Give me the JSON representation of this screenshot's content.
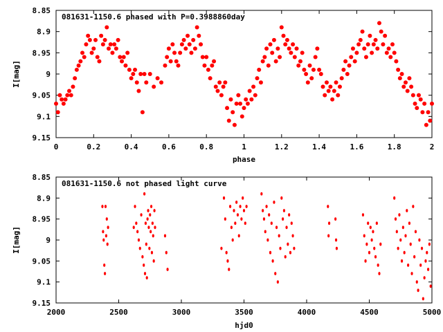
{
  "chart_data": [
    {
      "type": "scatter",
      "title": "081631-1150.6 phased with P=0.3988860day",
      "xlabel": "phase",
      "ylabel": "I[mag]",
      "xlim": [
        0,
        2
      ],
      "ylim": [
        8.85,
        9.15
      ],
      "y_inverted": true,
      "grid": false,
      "marker_color": "#ff0000",
      "marker": "filled-circle",
      "x_ticks": [
        "0",
        "0.2",
        "0.4",
        "0.6",
        "0.8",
        "1",
        "1.2",
        "1.4",
        "1.6",
        "1.8",
        "2"
      ],
      "y_ticks": [
        "8.85",
        "8.9",
        "8.95",
        "9",
        "9.05",
        "9.1",
        "9.15"
      ],
      "x_tick_values": [
        0,
        0.2,
        0.4,
        0.6,
        0.8,
        1,
        1.2,
        1.4,
        1.6,
        1.8,
        2
      ],
      "y_tick_values": [
        8.85,
        8.9,
        8.95,
        9,
        9.05,
        9.1,
        9.15
      ],
      "points": [
        [
          0.0,
          9.07
        ],
        [
          0.01,
          9.09
        ],
        [
          0.02,
          9.05
        ],
        [
          0.03,
          9.06
        ],
        [
          0.04,
          9.07
        ],
        [
          0.05,
          9.06
        ],
        [
          0.06,
          9.05
        ],
        [
          0.07,
          9.04
        ],
        [
          0.08,
          9.05
        ],
        [
          0.09,
          9.03
        ],
        [
          0.1,
          9.01
        ],
        [
          0.11,
          8.99
        ],
        [
          0.12,
          8.98
        ],
        [
          0.13,
          8.97
        ],
        [
          0.14,
          8.95
        ],
        [
          0.15,
          8.96
        ],
        [
          0.16,
          8.93
        ],
        [
          0.17,
          8.91
        ],
        [
          0.18,
          8.92
        ],
        [
          0.19,
          8.95
        ],
        [
          0.2,
          8.94
        ],
        [
          0.21,
          8.92
        ],
        [
          0.22,
          8.96
        ],
        [
          0.23,
          8.97
        ],
        [
          0.24,
          8.91
        ],
        [
          0.25,
          8.93
        ],
        [
          0.26,
          8.92
        ],
        [
          0.27,
          8.89
        ],
        [
          0.28,
          8.94
        ],
        [
          0.29,
          8.93
        ],
        [
          0.3,
          8.95
        ],
        [
          0.31,
          8.93
        ],
        [
          0.32,
          8.94
        ],
        [
          0.33,
          8.92
        ],
        [
          0.34,
          8.96
        ],
        [
          0.35,
          8.97
        ],
        [
          0.36,
          8.96
        ],
        [
          0.37,
          8.98
        ],
        [
          0.38,
          8.95
        ],
        [
          0.39,
          8.99
        ],
        [
          0.4,
          9.01
        ],
        [
          0.41,
          9.0
        ],
        [
          0.42,
          8.99
        ],
        [
          0.43,
          9.02
        ],
        [
          0.44,
          9.04
        ],
        [
          0.45,
          9.0
        ],
        [
          0.46,
          9.09
        ],
        [
          0.47,
          9.0
        ],
        [
          0.48,
          9.02
        ],
        [
          0.5,
          9.0
        ],
        [
          0.52,
          9.03
        ],
        [
          0.54,
          9.01
        ],
        [
          0.56,
          9.02
        ],
        [
          0.58,
          8.98
        ],
        [
          0.59,
          8.96
        ],
        [
          0.6,
          8.94
        ],
        [
          0.61,
          8.97
        ],
        [
          0.62,
          8.93
        ],
        [
          0.63,
          8.95
        ],
        [
          0.64,
          8.97
        ],
        [
          0.65,
          8.98
        ],
        [
          0.66,
          8.95
        ],
        [
          0.67,
          8.93
        ],
        [
          0.68,
          8.92
        ],
        [
          0.69,
          8.94
        ],
        [
          0.7,
          8.91
        ],
        [
          0.71,
          8.93
        ],
        [
          0.72,
          8.95
        ],
        [
          0.73,
          8.92
        ],
        [
          0.74,
          8.94
        ],
        [
          0.75,
          8.89
        ],
        [
          0.76,
          8.91
        ],
        [
          0.77,
          8.93
        ],
        [
          0.78,
          8.96
        ],
        [
          0.79,
          8.98
        ],
        [
          0.8,
          8.96
        ],
        [
          0.81,
          8.99
        ],
        [
          0.82,
          9.01
        ],
        [
          0.83,
          8.98
        ],
        [
          0.84,
          8.97
        ],
        [
          0.85,
          9.03
        ],
        [
          0.86,
          9.04
        ],
        [
          0.87,
          9.02
        ],
        [
          0.88,
          9.05
        ],
        [
          0.89,
          9.03
        ],
        [
          0.9,
          9.02
        ],
        [
          0.91,
          9.08
        ],
        [
          0.92,
          9.11
        ],
        [
          0.93,
          9.06
        ],
        [
          0.94,
          9.09
        ],
        [
          0.95,
          9.12
        ],
        [
          0.96,
          9.07
        ],
        [
          0.97,
          9.05
        ],
        [
          0.98,
          9.07
        ],
        [
          0.99,
          9.1
        ],
        [
          1.0,
          9.08
        ],
        [
          1.01,
          9.06
        ],
        [
          1.02,
          9.07
        ],
        [
          1.03,
          9.04
        ],
        [
          1.04,
          9.06
        ],
        [
          1.05,
          9.03
        ],
        [
          1.06,
          9.05
        ],
        [
          1.07,
          9.01
        ],
        [
          1.08,
          8.99
        ],
        [
          1.09,
          9.02
        ],
        [
          1.1,
          8.97
        ],
        [
          1.11,
          8.96
        ],
        [
          1.12,
          8.94
        ],
        [
          1.13,
          8.98
        ],
        [
          1.14,
          8.93
        ],
        [
          1.15,
          8.95
        ],
        [
          1.16,
          8.92
        ],
        [
          1.17,
          8.97
        ],
        [
          1.18,
          8.94
        ],
        [
          1.19,
          8.96
        ],
        [
          1.2,
          8.89
        ],
        [
          1.21,
          8.91
        ],
        [
          1.22,
          8.93
        ],
        [
          1.23,
          8.92
        ],
        [
          1.24,
          8.94
        ],
        [
          1.25,
          8.95
        ],
        [
          1.26,
          8.93
        ],
        [
          1.27,
          8.96
        ],
        [
          1.28,
          8.94
        ],
        [
          1.29,
          8.98
        ],
        [
          1.3,
          8.97
        ],
        [
          1.31,
          8.95
        ],
        [
          1.32,
          8.99
        ],
        [
          1.33,
          9.0
        ],
        [
          1.34,
          9.02
        ],
        [
          1.35,
          8.98
        ],
        [
          1.36,
          9.01
        ],
        [
          1.37,
          8.99
        ],
        [
          1.38,
          8.96
        ],
        [
          1.39,
          8.94
        ],
        [
          1.4,
          8.99
        ],
        [
          1.41,
          9.0
        ],
        [
          1.42,
          9.03
        ],
        [
          1.43,
          9.05
        ],
        [
          1.44,
          9.02
        ],
        [
          1.45,
          9.04
        ],
        [
          1.46,
          9.03
        ],
        [
          1.47,
          9.06
        ],
        [
          1.48,
          9.04
        ],
        [
          1.49,
          9.02
        ],
        [
          1.5,
          9.05
        ],
        [
          1.51,
          9.03
        ],
        [
          1.52,
          9.01
        ],
        [
          1.53,
          8.99
        ],
        [
          1.54,
          8.97
        ],
        [
          1.55,
          9.0
        ],
        [
          1.56,
          8.98
        ],
        [
          1.57,
          8.96
        ],
        [
          1.58,
          8.94
        ],
        [
          1.59,
          8.97
        ],
        [
          1.6,
          8.95
        ],
        [
          1.61,
          8.93
        ],
        [
          1.62,
          8.92
        ],
        [
          1.63,
          8.9
        ],
        [
          1.64,
          8.94
        ],
        [
          1.65,
          8.96
        ],
        [
          1.66,
          8.93
        ],
        [
          1.67,
          8.91
        ],
        [
          1.68,
          8.95
        ],
        [
          1.69,
          8.93
        ],
        [
          1.7,
          8.92
        ],
        [
          1.71,
          8.94
        ],
        [
          1.72,
          8.88
        ],
        [
          1.73,
          8.9
        ],
        [
          1.74,
          8.93
        ],
        [
          1.75,
          8.91
        ],
        [
          1.76,
          8.95
        ],
        [
          1.77,
          8.94
        ],
        [
          1.78,
          8.96
        ],
        [
          1.79,
          8.93
        ],
        [
          1.8,
          8.95
        ],
        [
          1.81,
          8.97
        ],
        [
          1.82,
          8.99
        ],
        [
          1.83,
          9.01
        ],
        [
          1.84,
          9.0
        ],
        [
          1.85,
          9.03
        ],
        [
          1.86,
          9.02
        ],
        [
          1.87,
          9.04
        ],
        [
          1.88,
          9.01
        ],
        [
          1.89,
          9.03
        ],
        [
          1.9,
          9.05
        ],
        [
          1.91,
          9.07
        ],
        [
          1.92,
          9.08
        ],
        [
          1.93,
          9.05
        ],
        [
          1.94,
          9.06
        ],
        [
          1.95,
          9.09
        ],
        [
          1.96,
          9.07
        ],
        [
          1.97,
          9.12
        ],
        [
          1.98,
          9.09
        ],
        [
          1.99,
          9.11
        ],
        [
          2.0,
          9.07
        ]
      ]
    },
    {
      "type": "scatter",
      "title": "081631-1150.6 not phased light curve",
      "xlabel": "hjd0",
      "ylabel": "I[mag]",
      "xlim": [
        2000,
        5000
      ],
      "ylim": [
        8.85,
        9.15
      ],
      "y_inverted": true,
      "grid": false,
      "marker_color": "#ff0000",
      "marker": "small-dot",
      "x_ticks": [
        "2000",
        "2500",
        "3000",
        "3500",
        "4000",
        "4500",
        "5000"
      ],
      "y_ticks": [
        "8.85",
        "8.9",
        "8.95",
        "9",
        "9.05",
        "9.1",
        "9.15"
      ],
      "x_tick_values": [
        2000,
        2500,
        3000,
        3500,
        4000,
        4500,
        5000
      ],
      "y_tick_values": [
        8.85,
        8.9,
        8.95,
        9,
        9.05,
        9.1,
        9.15
      ],
      "points": [
        [
          2370,
          8.92
        ],
        [
          2375,
          8.98
        ],
        [
          2380,
          9.0
        ],
        [
          2385,
          9.06
        ],
        [
          2390,
          9.08
        ],
        [
          2395,
          8.92
        ],
        [
          2400,
          8.99
        ],
        [
          2405,
          8.95
        ],
        [
          2410,
          9.01
        ],
        [
          2415,
          8.97
        ],
        [
          2620,
          8.97
        ],
        [
          2630,
          8.92
        ],
        [
          2640,
          8.96
        ],
        [
          2650,
          8.98
        ],
        [
          2660,
          9.0
        ],
        [
          2670,
          9.02
        ],
        [
          2680,
          8.94
        ],
        [
          2690,
          9.04
        ],
        [
          2700,
          9.06
        ],
        [
          2705,
          8.89
        ],
        [
          2710,
          9.08
        ],
        [
          2715,
          8.96
        ],
        [
          2720,
          9.01
        ],
        [
          2725,
          9.09
        ],
        [
          2730,
          8.95
        ],
        [
          2735,
          8.93
        ],
        [
          2740,
          8.97
        ],
        [
          2745,
          9.02
        ],
        [
          2750,
          8.94
        ],
        [
          2755,
          8.98
        ],
        [
          2760,
          8.92
        ],
        [
          2765,
          9.03
        ],
        [
          2770,
          8.96
        ],
        [
          2775,
          8.99
        ],
        [
          2780,
          9.05
        ],
        [
          2785,
          8.93
        ],
        [
          2790,
          8.97
        ],
        [
          2870,
          8.99
        ],
        [
          2880,
          9.03
        ],
        [
          2890,
          9.07
        ],
        [
          3320,
          9.02
        ],
        [
          3340,
          8.9
        ],
        [
          3350,
          8.95
        ],
        [
          3360,
          9.03
        ],
        [
          3370,
          9.05
        ],
        [
          3380,
          9.07
        ],
        [
          3390,
          8.92
        ],
        [
          3400,
          8.97
        ],
        [
          3410,
          9.0
        ],
        [
          3420,
          8.93
        ],
        [
          3430,
          8.96
        ],
        [
          3440,
          8.91
        ],
        [
          3450,
          8.94
        ],
        [
          3460,
          8.99
        ],
        [
          3470,
          8.92
        ],
        [
          3480,
          8.95
        ],
        [
          3490,
          8.9
        ],
        [
          3500,
          8.93
        ],
        [
          3510,
          8.96
        ],
        [
          3520,
          8.92
        ],
        [
          3640,
          8.89
        ],
        [
          3650,
          8.93
        ],
        [
          3660,
          8.95
        ],
        [
          3670,
          8.98
        ],
        [
          3680,
          8.92
        ],
        [
          3690,
          9.0
        ],
        [
          3700,
          8.94
        ],
        [
          3710,
          9.03
        ],
        [
          3720,
          8.96
        ],
        [
          3730,
          9.05
        ],
        [
          3740,
          8.91
        ],
        [
          3750,
          9.08
        ],
        [
          3760,
          8.97
        ],
        [
          3770,
          9.1
        ],
        [
          3780,
          8.99
        ],
        [
          3790,
          9.02
        ],
        [
          3800,
          8.9
        ],
        [
          3810,
          8.95
        ],
        [
          3820,
          8.93
        ],
        [
          3830,
          9.04
        ],
        [
          3840,
          8.97
        ],
        [
          3850,
          9.01
        ],
        [
          3860,
          8.94
        ],
        [
          3870,
          9.03
        ],
        [
          3880,
          8.96
        ],
        [
          3890,
          8.99
        ],
        [
          3900,
          9.02
        ],
        [
          4170,
          8.92
        ],
        [
          4175,
          8.99
        ],
        [
          4180,
          8.96
        ],
        [
          4230,
          8.95
        ],
        [
          4235,
          9.0
        ],
        [
          4240,
          9.02
        ],
        [
          4450,
          8.94
        ],
        [
          4460,
          8.99
        ],
        [
          4470,
          9.05
        ],
        [
          4480,
          9.01
        ],
        [
          4490,
          8.96
        ],
        [
          4500,
          9.03
        ],
        [
          4510,
          8.97
        ],
        [
          4520,
          9.0
        ],
        [
          4530,
          8.98
        ],
        [
          4540,
          9.02
        ],
        [
          4550,
          9.04
        ],
        [
          4560,
          8.96
        ],
        [
          4570,
          9.06
        ],
        [
          4580,
          9.08
        ],
        [
          4590,
          9.01
        ],
        [
          4700,
          8.9
        ],
        [
          4710,
          8.95
        ],
        [
          4720,
          8.98
        ],
        [
          4730,
          9.02
        ],
        [
          4740,
          8.94
        ],
        [
          4750,
          9.0
        ],
        [
          4760,
          9.05
        ],
        [
          4770,
          8.97
        ],
        [
          4780,
          9.03
        ],
        [
          4790,
          8.99
        ],
        [
          4800,
          8.93
        ],
        [
          4810,
          9.06
        ],
        [
          4820,
          8.96
        ],
        [
          4830,
          9.01
        ],
        [
          4840,
          9.08
        ],
        [
          4850,
          8.92
        ],
        [
          4860,
          9.04
        ],
        [
          4870,
          8.98
        ],
        [
          4880,
          9.1
        ],
        [
          4890,
          9.12
        ],
        [
          4900,
          9.0
        ],
        [
          4910,
          9.06
        ],
        [
          4920,
          9.02
        ],
        [
          4930,
          9.14
        ],
        [
          4940,
          9.09
        ],
        [
          4950,
          9.05
        ],
        [
          4960,
          9.03
        ],
        [
          4970,
          9.07
        ],
        [
          4980,
          9.01
        ],
        [
          4990,
          9.11
        ]
      ]
    }
  ]
}
